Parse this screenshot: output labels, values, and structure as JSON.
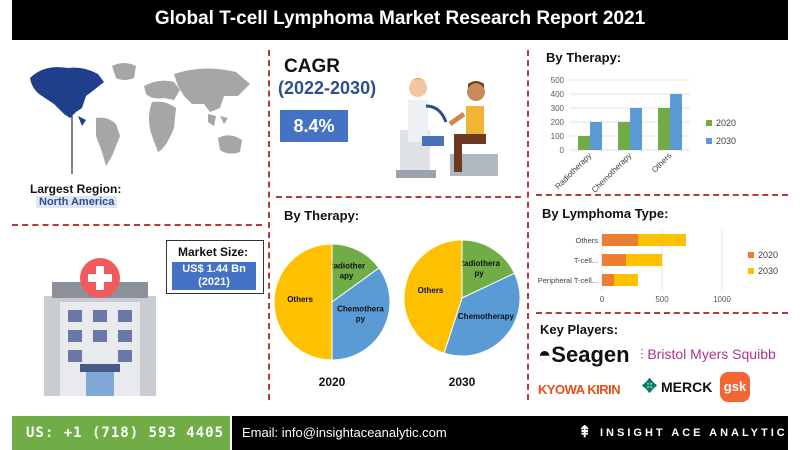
{
  "title": "Global T-cell Lymphoma Market Research Report 2021",
  "largest_region": {
    "label": "Largest Region:",
    "value": "North America"
  },
  "market_size": {
    "label": "Market Size:",
    "value_line1": "US$ 1.44 Bn",
    "value_line2": "(2021)"
  },
  "cagr": {
    "title": "CAGR",
    "years": "(2022-2030)",
    "value": "8.4%"
  },
  "sections": {
    "pie_title": "By Therapy:",
    "bar_therapy_title": "By Therapy:",
    "lymphoma_title": "By Lymphoma Type:",
    "key_players_title": "Key Players:"
  },
  "key_players": [
    "Seagen",
    "Bristol Myers Squibb",
    "KYOWA KIRIN",
    "MERCK",
    "gsk"
  ],
  "footer": {
    "phone": "US: +1 (718) 593 4405",
    "email": "Email: info@insightaceanalytic.com",
    "brand": "INSIGHT ACE ANALYTIC"
  },
  "colors": {
    "blue": "#5b9bd5",
    "green": "#70ad47",
    "yellow": "#ffc000",
    "orange": "#ed7d31",
    "accent": "#4472c4"
  },
  "chart_data": [
    {
      "type": "bar",
      "title": "By Therapy:",
      "categories": [
        "Radiotherapy",
        "Chemotherapy",
        "Others"
      ],
      "series": [
        {
          "name": "2020",
          "color": "#70ad47",
          "values": [
            100,
            200,
            300
          ]
        },
        {
          "name": "2030",
          "color": "#5b9bd5",
          "values": [
            200,
            300,
            400
          ]
        }
      ],
      "ylim": [
        0,
        500
      ],
      "yticks": [
        "0",
        "100",
        "200",
        "300",
        "400",
        "500"
      ],
      "legend": "right"
    },
    {
      "type": "bar",
      "orientation": "horizontal",
      "stacked": true,
      "title": "By Lymphoma Type:",
      "categories": [
        "Others",
        "T-cell...",
        "Peripheral T-cell..."
      ],
      "series": [
        {
          "name": "2020",
          "color": "#ed7d31",
          "values": [
            300,
            200,
            100
          ]
        },
        {
          "name": "2030",
          "color": "#ffc000",
          "values": [
            400,
            300,
            200
          ]
        }
      ],
      "xlim": [
        0,
        1000
      ],
      "xticks": [
        "0",
        "500",
        "1000"
      ],
      "legend": "right"
    },
    {
      "type": "pie",
      "title": "2020",
      "labels": [
        "Radiotherapy",
        "Chemotherapy",
        "Others"
      ],
      "slice_labels": [
        "Radiother\napy",
        "Chemothera\npy",
        "Others"
      ],
      "values": [
        15,
        35,
        50
      ],
      "colors": [
        "#70ad47",
        "#5b9bd5",
        "#ffc000"
      ]
    },
    {
      "type": "pie",
      "title": "2030",
      "labels": [
        "Radiotherapy",
        "Chemotherapy",
        "Others"
      ],
      "slice_labels": [
        "Radiothera\npy",
        "Chemotherapy",
        "Others"
      ],
      "values": [
        18,
        37,
        45
      ],
      "colors": [
        "#70ad47",
        "#5b9bd5",
        "#ffc000"
      ]
    }
  ]
}
